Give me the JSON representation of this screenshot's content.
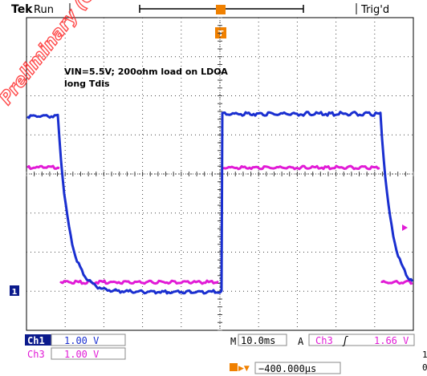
{
  "header": {
    "brand": "Tek",
    "run_state": "Run",
    "trigger_state": "Trig'd"
  },
  "annotation": {
    "line1": "VIN=5.5V; 200ohm load on LDOA",
    "line2": "long Tdis"
  },
  "watermark": {
    "text": "Preliminary (OBS)",
    "color": "#ff2a2a"
  },
  "channels": {
    "ch1": {
      "label": "Ch1",
      "scale": "1.00 V",
      "color": "#1a2fd0",
      "marker": "1"
    },
    "ch3": {
      "label": "Ch3",
      "scale": "1.00 V",
      "color": "#e11bd6"
    }
  },
  "status": {
    "timebase_prefix": "M",
    "timebase": "10.0ms",
    "trigger_mode": "A",
    "trigger_source": "Ch3",
    "trigger_slope_symbol": "ʃ",
    "trigger_level": "1.66 V",
    "position_arrow": "▶▼",
    "position_value": "−400.000µs",
    "side_glyph_1": "1",
    "side_glyph_2": "0"
  },
  "colors": {
    "grid": "#444444",
    "accent": "#f08000",
    "label_bg": "#0b1a8c"
  }
}
